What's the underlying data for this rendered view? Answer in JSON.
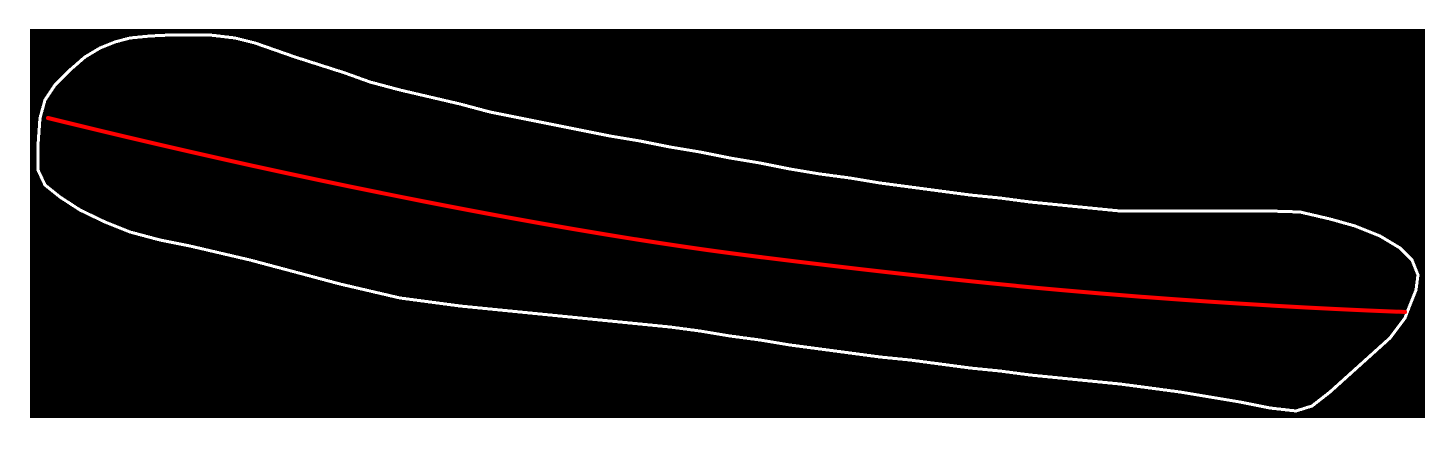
{
  "colors": {
    "page_background": "#ffffff",
    "canvas_background": "#000000",
    "outline_stroke": "#ffffff",
    "centerline_stroke": "#ff0000"
  }
}
